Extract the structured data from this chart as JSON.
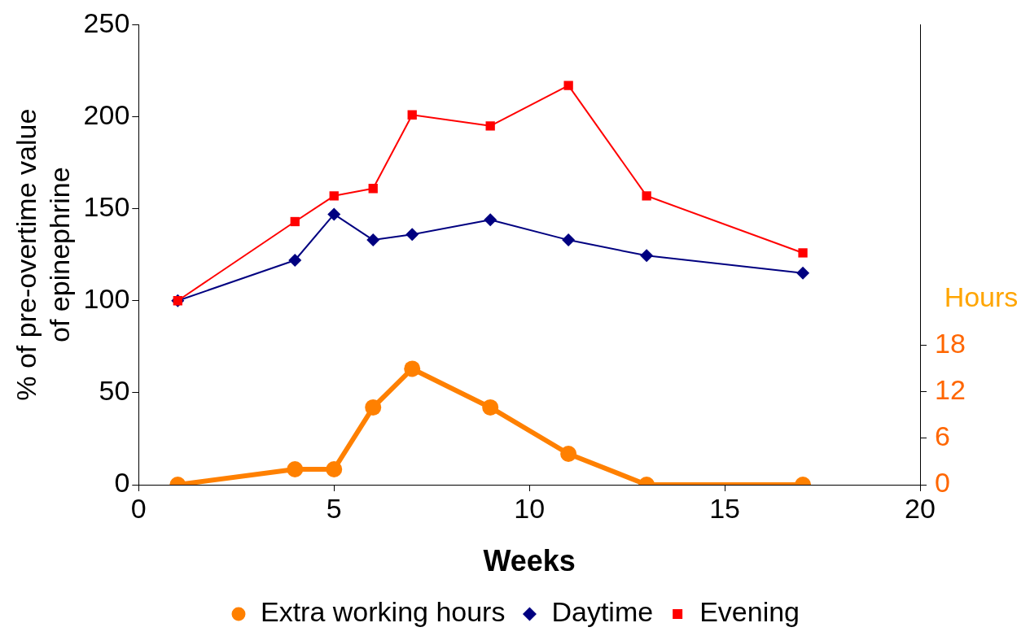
{
  "chart_data": {
    "type": "line",
    "xlabel": "Weeks",
    "ylabel": "% of pre-overtime value\nof epinephrine",
    "y2label": "Hours",
    "xlim": [
      0,
      20
    ],
    "xticks": [
      0,
      5,
      10,
      15,
      20
    ],
    "ylim": [
      0,
      250
    ],
    "yticks": [
      0,
      50,
      100,
      150,
      200,
      250
    ],
    "y2lim": [
      0,
      59.5
    ],
    "y2ticks": [
      0,
      6,
      12,
      18
    ],
    "grid": false,
    "legend": "bottom",
    "line_style": "solid",
    "series": [
      {
        "name": "Extra working hours",
        "color": "#ff8000",
        "axis": "y2",
        "marker": "circle",
        "x": [
          1,
          4,
          5,
          6,
          7,
          9,
          11,
          13,
          17
        ],
        "values": [
          0,
          2,
          2,
          10,
          15,
          10,
          4,
          0,
          0
        ]
      },
      {
        "name": "Daytime",
        "color": "#000080",
        "marker": "diamond",
        "x": [
          1,
          4,
          5,
          6,
          7,
          9,
          11,
          13,
          17
        ],
        "values": [
          100,
          122,
          147,
          133,
          136,
          144,
          133,
          124.5,
          115
        ]
      },
      {
        "name": "Evening",
        "color": "#ff0000",
        "marker": "square",
        "x": [
          1,
          4,
          5,
          6,
          7,
          9,
          11,
          13,
          17
        ],
        "values": [
          100,
          143,
          157,
          161,
          201,
          195,
          217,
          157,
          126
        ]
      }
    ]
  }
}
